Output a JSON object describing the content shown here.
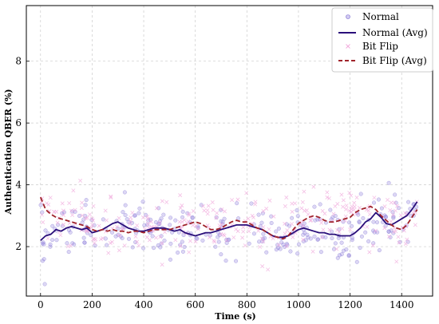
{
  "chart_data": {
    "type": "scatter",
    "xlabel": "Time (s)",
    "ylabel": "Authentication QBER (%)",
    "xlim": [
      -55,
      1520
    ],
    "ylim": [
      0.4,
      9.8
    ],
    "xticks": [
      0,
      200,
      400,
      600,
      800,
      1000,
      1200,
      1400
    ],
    "yticks": [
      2,
      4,
      6,
      8
    ],
    "grid": true,
    "legend_position": "top-right",
    "colors": {
      "normal_points": "#9b8be0",
      "normal_avg": "#2a0f7a",
      "bitflip_points": "#f0a9dc",
      "bitflip_avg": "#a0232b"
    },
    "series": [
      {
        "name": "Normal",
        "kind": "scatter",
        "marker": "circle",
        "points_note": "noisy samples around the moving average",
        "center": [
          [
            0,
            2.2
          ],
          [
            100,
            2.5
          ],
          [
            200,
            2.55
          ],
          [
            300,
            2.7
          ],
          [
            400,
            2.5
          ],
          [
            500,
            2.6
          ],
          [
            600,
            2.4
          ],
          [
            700,
            2.55
          ],
          [
            800,
            2.65
          ],
          [
            900,
            2.4
          ],
          [
            1000,
            2.55
          ],
          [
            1100,
            2.45
          ],
          [
            1200,
            2.35
          ],
          [
            1300,
            2.8
          ],
          [
            1400,
            2.9
          ],
          [
            1460,
            3.4
          ]
        ],
        "spread": 0.6,
        "count": 300
      },
      {
        "name": "Normal (Avg)",
        "kind": "line",
        "style": "solid",
        "x": [
          0,
          20,
          40,
          60,
          80,
          100,
          120,
          140,
          160,
          180,
          200,
          220,
          240,
          260,
          280,
          300,
          320,
          340,
          360,
          380,
          400,
          420,
          440,
          460,
          480,
          500,
          520,
          540,
          560,
          580,
          600,
          620,
          640,
          660,
          680,
          700,
          720,
          740,
          760,
          780,
          800,
          820,
          840,
          860,
          880,
          900,
          920,
          940,
          960,
          980,
          1000,
          1020,
          1040,
          1060,
          1080,
          1100,
          1120,
          1140,
          1160,
          1180,
          1200,
          1220,
          1240,
          1260,
          1280,
          1300,
          1320,
          1340,
          1360,
          1380,
          1400,
          1420,
          1440,
          1460
        ],
        "y": [
          2.2,
          2.35,
          2.4,
          2.55,
          2.5,
          2.6,
          2.65,
          2.6,
          2.55,
          2.6,
          2.45,
          2.5,
          2.55,
          2.65,
          2.75,
          2.8,
          2.7,
          2.6,
          2.55,
          2.5,
          2.5,
          2.55,
          2.6,
          2.6,
          2.6,
          2.55,
          2.5,
          2.55,
          2.45,
          2.4,
          2.35,
          2.4,
          2.45,
          2.45,
          2.5,
          2.55,
          2.6,
          2.65,
          2.7,
          2.7,
          2.7,
          2.65,
          2.6,
          2.55,
          2.45,
          2.35,
          2.3,
          2.3,
          2.35,
          2.45,
          2.55,
          2.6,
          2.55,
          2.5,
          2.45,
          2.45,
          2.4,
          2.4,
          2.35,
          2.35,
          2.35,
          2.45,
          2.6,
          2.8,
          2.9,
          3.1,
          2.95,
          2.75,
          2.7,
          2.8,
          2.9,
          3.0,
          3.2,
          3.45
        ]
      },
      {
        "name": "Bit Flip",
        "kind": "scatter",
        "marker": "x",
        "center": [
          [
            0,
            3.0
          ],
          [
            100,
            2.9
          ],
          [
            200,
            2.6
          ],
          [
            300,
            2.5
          ],
          [
            400,
            2.55
          ],
          [
            500,
            2.5
          ],
          [
            600,
            2.7
          ],
          [
            700,
            2.6
          ],
          [
            800,
            2.9
          ],
          [
            900,
            2.5
          ],
          [
            1000,
            2.9
          ],
          [
            1100,
            2.95
          ],
          [
            1200,
            3.1
          ],
          [
            1300,
            3.0
          ],
          [
            1400,
            2.6
          ],
          [
            1460,
            3.2
          ]
        ],
        "spread": 0.65,
        "count": 300
      },
      {
        "name": "Bit Flip (Avg)",
        "kind": "line",
        "style": "dashed",
        "x": [
          0,
          20,
          40,
          60,
          80,
          100,
          120,
          140,
          160,
          180,
          200,
          220,
          240,
          260,
          280,
          300,
          320,
          340,
          360,
          380,
          400,
          420,
          440,
          460,
          480,
          500,
          520,
          540,
          560,
          580,
          600,
          620,
          640,
          660,
          680,
          700,
          720,
          740,
          760,
          780,
          800,
          820,
          840,
          860,
          880,
          900,
          920,
          940,
          960,
          980,
          1000,
          1020,
          1040,
          1060,
          1080,
          1100,
          1120,
          1140,
          1160,
          1180,
          1200,
          1220,
          1240,
          1260,
          1280,
          1300,
          1320,
          1340,
          1360,
          1380,
          1400,
          1420,
          1440,
          1460
        ],
        "y": [
          3.6,
          3.2,
          3.05,
          2.95,
          2.9,
          2.85,
          2.8,
          2.75,
          2.7,
          2.65,
          2.55,
          2.5,
          2.55,
          2.5,
          2.55,
          2.5,
          2.5,
          2.45,
          2.5,
          2.5,
          2.45,
          2.5,
          2.55,
          2.55,
          2.55,
          2.55,
          2.6,
          2.65,
          2.7,
          2.75,
          2.8,
          2.75,
          2.65,
          2.55,
          2.55,
          2.6,
          2.7,
          2.8,
          2.85,
          2.8,
          2.8,
          2.7,
          2.6,
          2.55,
          2.45,
          2.35,
          2.3,
          2.25,
          2.35,
          2.55,
          2.75,
          2.85,
          2.95,
          3.0,
          2.95,
          2.85,
          2.8,
          2.8,
          2.85,
          2.9,
          2.95,
          3.1,
          3.2,
          3.25,
          3.3,
          3.2,
          3.0,
          2.85,
          2.7,
          2.6,
          2.55,
          2.7,
          2.95,
          3.2
        ]
      }
    ]
  }
}
